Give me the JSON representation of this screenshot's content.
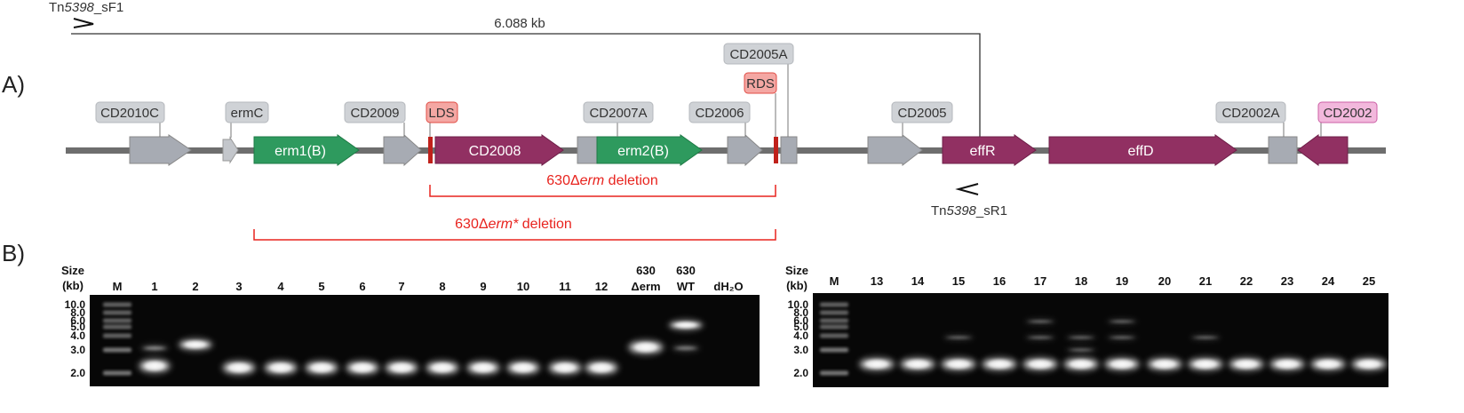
{
  "panel_a": {
    "letter": "A)",
    "primer_forward": {
      "prefix": "Tn",
      "italic": "5398",
      "suffix": "_sF1"
    },
    "primer_reverse": {
      "prefix": "Tn",
      "italic": "5398",
      "suffix": "_sR1"
    },
    "amplicon_size": "6.088 kb",
    "gene_labels": {
      "cd2010c": "CD2010C",
      "ermc": "ermC",
      "cd2009": "CD2009",
      "lds": "LDS",
      "cd2007a": "CD2007A",
      "cd2006": "CD2006",
      "rds": "RDS",
      "cd2005a": "CD2005A",
      "cd2005": "CD2005",
      "cd2002a": "CD2002A",
      "cd2002": "CD2002"
    },
    "gene_inner_labels": {
      "erm1b": "erm1(B)",
      "cd2008": "CD2008",
      "erm2b": "erm2(B)",
      "effr": "effR",
      "effd": "effD"
    },
    "deletion_1": {
      "prefix": "630Δ",
      "italic": "erm",
      "suffix": " deletion"
    },
    "deletion_2": {
      "prefix": "630Δ",
      "italic": "erm*",
      "suffix": " deletion"
    },
    "colors": {
      "grey_gene": "#a7abb3",
      "green_gene": "#2e9a5e",
      "purple_gene": "#913062",
      "backbone": "#6e6e6e",
      "deletion_red": "#e8231e",
      "site_red": "#c0211b",
      "tag_grey": "#cfd2d6",
      "tag_red": "#f4a7a3",
      "tag_pink": "#f2b8dc"
    }
  },
  "panel_b": {
    "letter": "B)",
    "size_header_1": "Size",
    "size_header_2": "(kb)",
    "ladder_sizes": [
      "10.0",
      "8.0",
      "6.0",
      "5.0",
      "4.0",
      "3.0",
      "2.0"
    ],
    "gel1_lanes": [
      "M",
      "1",
      "2",
      "3",
      "4",
      "5",
      "6",
      "7",
      "8",
      "9",
      "10",
      "11",
      "12",
      "630",
      "630",
      "dH₂O"
    ],
    "gel1_lane_sub": {
      "13": "Δerm",
      "14": "WT"
    },
    "gel2_lanes": [
      "M",
      "13",
      "14",
      "15",
      "16",
      "17",
      "18",
      "19",
      "20",
      "21",
      "22",
      "23",
      "24",
      "25"
    ]
  }
}
